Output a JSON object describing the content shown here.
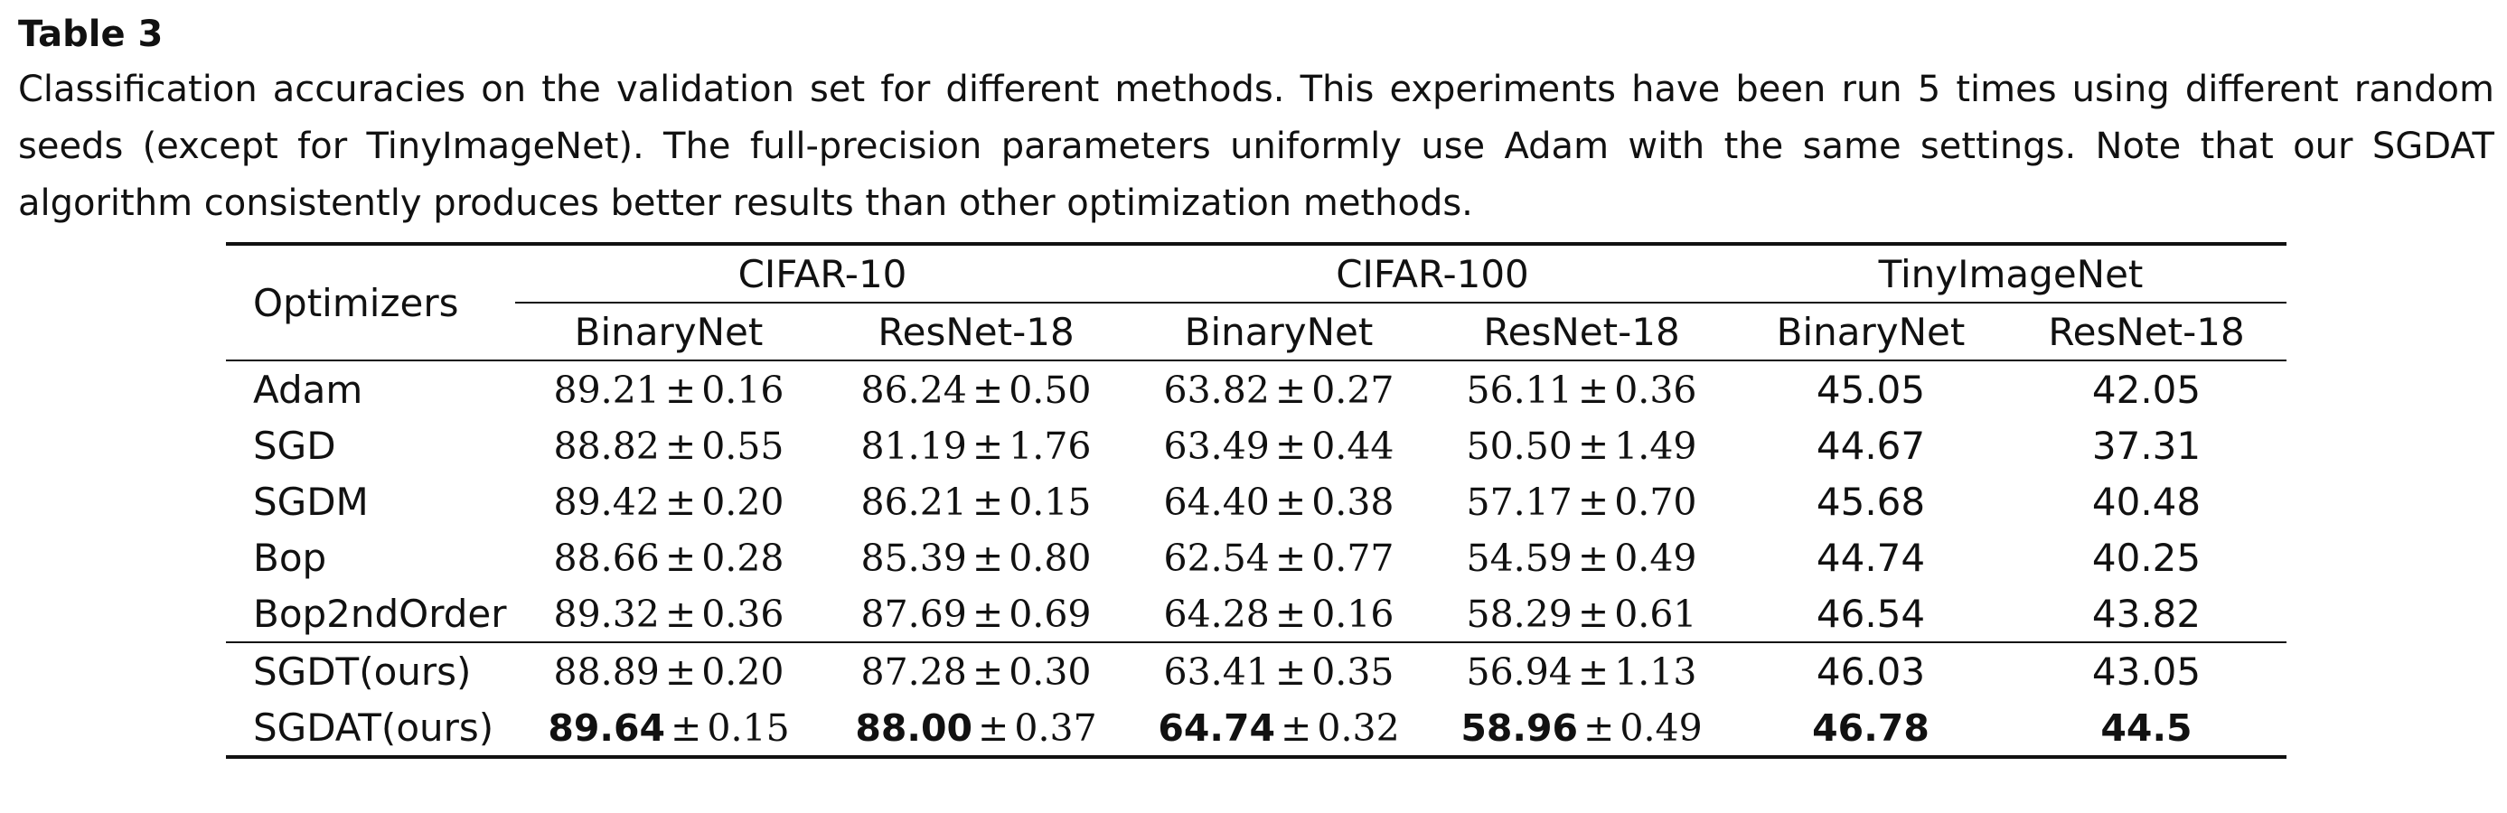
{
  "table_label": "Table 3",
  "caption": "Classification accuracies on the validation set for different methods. This experiments have been run 5 times using different random seeds (except for TinyImageNet). The full-precision parameters uniformly use Adam with the same settings. Note that our SGDAT algorithm consistently produces better results than other optimization methods.",
  "header": {
    "row_label": "Optimizers",
    "datasets": [
      "CIFAR-10",
      "CIFAR-100",
      "TinyImageNet"
    ],
    "models": [
      "BinaryNet",
      "ResNet-18",
      "BinaryNet",
      "ResNet-18",
      "BinaryNet",
      "ResNet-18"
    ]
  },
  "pm_symbol": "±",
  "rows": [
    {
      "name": "Adam",
      "cells": [
        {
          "mean": "89.21",
          "std": "0.16"
        },
        {
          "mean": "86.24",
          "std": "0.50"
        },
        {
          "mean": "63.82",
          "std": "0.27"
        },
        {
          "mean": "56.11",
          "std": "0.36"
        },
        {
          "mean": "45.05"
        },
        {
          "mean": "42.05"
        }
      ]
    },
    {
      "name": "SGD",
      "cells": [
        {
          "mean": "88.82",
          "std": "0.55"
        },
        {
          "mean": "81.19",
          "std": "1.76"
        },
        {
          "mean": "63.49",
          "std": "0.44"
        },
        {
          "mean": "50.50",
          "std": "1.49"
        },
        {
          "mean": "44.67"
        },
        {
          "mean": "37.31"
        }
      ]
    },
    {
      "name": "SGDM",
      "cells": [
        {
          "mean": "89.42",
          "std": "0.20"
        },
        {
          "mean": "86.21",
          "std": "0.15"
        },
        {
          "mean": "64.40",
          "std": "0.38"
        },
        {
          "mean": "57.17",
          "std": "0.70"
        },
        {
          "mean": "45.68"
        },
        {
          "mean": "40.48"
        }
      ]
    },
    {
      "name": "Bop",
      "cells": [
        {
          "mean": "88.66",
          "std": "0.28"
        },
        {
          "mean": "85.39",
          "std": "0.80"
        },
        {
          "mean": "62.54",
          "std": "0.77"
        },
        {
          "mean": "54.59",
          "std": "0.49"
        },
        {
          "mean": "44.74"
        },
        {
          "mean": "40.25"
        }
      ]
    },
    {
      "name": "Bop2ndOrder",
      "cells": [
        {
          "mean": "89.32",
          "std": "0.36"
        },
        {
          "mean": "87.69",
          "std": "0.69"
        },
        {
          "mean": "64.28",
          "std": "0.16"
        },
        {
          "mean": "58.29",
          "std": "0.61"
        },
        {
          "mean": "46.54"
        },
        {
          "mean": "43.82"
        }
      ]
    },
    {
      "name": "SGDT(ours)",
      "group_start": true,
      "cells": [
        {
          "mean": "88.89",
          "std": "0.20"
        },
        {
          "mean": "87.28",
          "std": "0.30"
        },
        {
          "mean": "63.41",
          "std": "0.35"
        },
        {
          "mean": "56.94",
          "std": "1.13"
        },
        {
          "mean": "46.03"
        },
        {
          "mean": "43.05"
        }
      ]
    },
    {
      "name": "SGDAT(ours)",
      "cells": [
        {
          "mean": "89.64",
          "std": "0.15",
          "bold": true
        },
        {
          "mean": "88.00",
          "std": "0.37",
          "bold": true
        },
        {
          "mean": "64.74",
          "std": "0.32",
          "bold": true
        },
        {
          "mean": "58.96",
          "std": "0.49",
          "bold": true
        },
        {
          "mean": "46.78",
          "bold": true
        },
        {
          "mean": "44.5",
          "bold": true
        }
      ]
    }
  ]
}
